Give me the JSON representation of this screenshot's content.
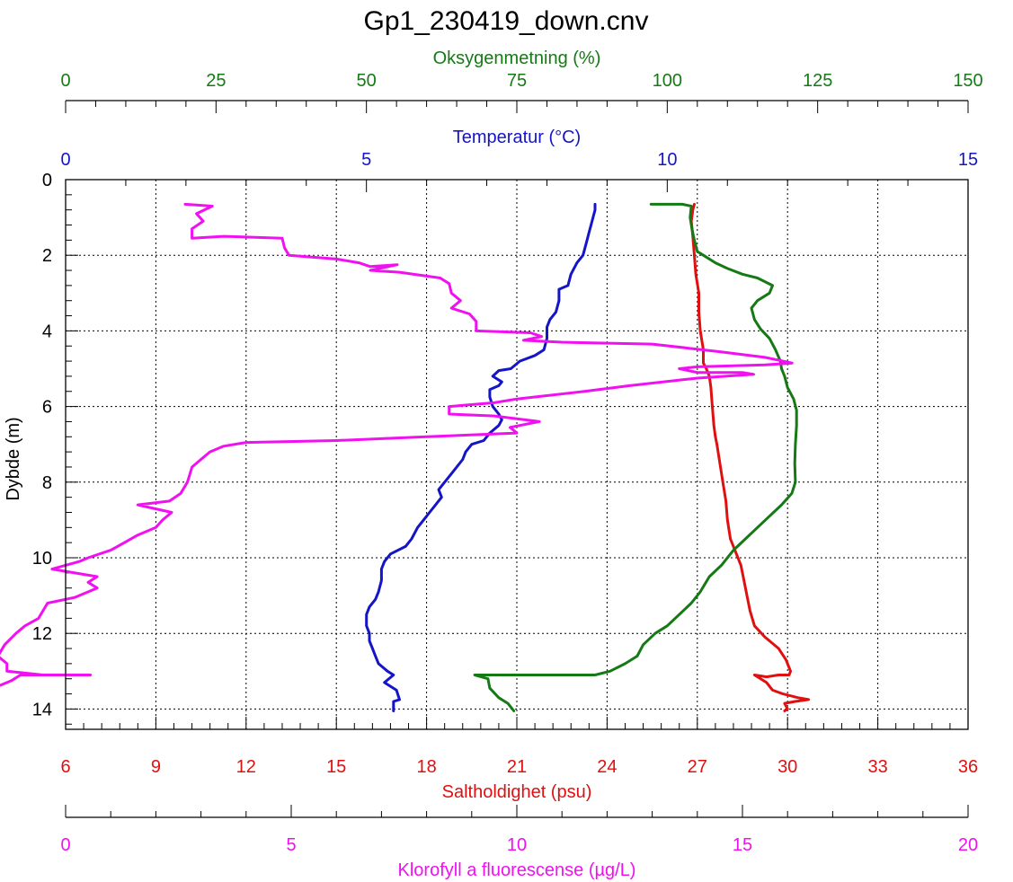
{
  "chart_data": {
    "type": "line",
    "title": "Gp1_230419_down.cnv",
    "y_axis": {
      "label": "Dybde (m)",
      "range": [
        0,
        14.8
      ],
      "ticks": [
        0,
        2,
        4,
        6,
        8,
        10,
        12,
        14
      ],
      "inverted": true,
      "grid": true
    },
    "axes": {
      "oxygen": {
        "label": "Oksygenmetning (%)",
        "range": [
          0,
          150
        ],
        "ticks": [
          0,
          25,
          50,
          75,
          100,
          125,
          150
        ],
        "position": "top",
        "color": "#157a15"
      },
      "temp": {
        "label": "Temperatur (°C)",
        "range": [
          0,
          15
        ],
        "ticks": [
          0,
          5,
          10,
          15
        ],
        "position": "top",
        "color": "#1515c8"
      },
      "salinity": {
        "label": "Saltholdighet (psu)",
        "range": [
          6,
          36
        ],
        "ticks": [
          6,
          9,
          12,
          15,
          18,
          21,
          24,
          27,
          30,
          33,
          36
        ],
        "position": "bottom",
        "color": "#e01010"
      },
      "chl": {
        "label": "Klorofyll a fluorescense (µg/L)",
        "range": [
          0,
          20
        ],
        "ticks": [
          0,
          5,
          10,
          15,
          20
        ],
        "position": "bottom",
        "color": "#f010f0"
      }
    },
    "series": [
      {
        "axis": "temp",
        "color": "#1515c8",
        "points": [
          [
            8.8,
            0.65
          ],
          [
            8.8,
            0.8
          ],
          [
            8.75,
            1.1
          ],
          [
            8.7,
            1.4
          ],
          [
            8.65,
            1.7
          ],
          [
            8.6,
            2.0
          ],
          [
            8.5,
            2.2
          ],
          [
            8.4,
            2.5
          ],
          [
            8.35,
            2.8
          ],
          [
            8.2,
            2.9
          ],
          [
            8.2,
            3.2
          ],
          [
            8.15,
            3.5
          ],
          [
            8.05,
            3.7
          ],
          [
            8.0,
            3.9
          ],
          [
            8.0,
            4.2
          ],
          [
            7.95,
            4.5
          ],
          [
            7.8,
            4.65
          ],
          [
            7.55,
            4.8
          ],
          [
            7.4,
            5.0
          ],
          [
            7.2,
            5.05
          ],
          [
            7.1,
            5.2
          ],
          [
            7.25,
            5.35
          ],
          [
            7.2,
            5.45
          ],
          [
            7.05,
            5.55
          ],
          [
            7.05,
            5.75
          ],
          [
            7.1,
            6.0
          ],
          [
            7.2,
            6.2
          ],
          [
            7.25,
            6.35
          ],
          [
            7.2,
            6.5
          ],
          [
            7.05,
            6.7
          ],
          [
            6.95,
            6.9
          ],
          [
            6.75,
            7.0
          ],
          [
            6.65,
            7.2
          ],
          [
            6.6,
            7.4
          ],
          [
            6.5,
            7.6
          ],
          [
            6.4,
            7.8
          ],
          [
            6.3,
            8.0
          ],
          [
            6.2,
            8.2
          ],
          [
            6.25,
            8.4
          ],
          [
            6.15,
            8.6
          ],
          [
            6.05,
            8.8
          ],
          [
            5.95,
            9.0
          ],
          [
            5.85,
            9.2
          ],
          [
            5.75,
            9.5
          ],
          [
            5.65,
            9.7
          ],
          [
            5.4,
            9.9
          ],
          [
            5.3,
            10.1
          ],
          [
            5.25,
            10.3
          ],
          [
            5.25,
            10.6
          ],
          [
            5.2,
            10.9
          ],
          [
            5.15,
            11.1
          ],
          [
            5.05,
            11.3
          ],
          [
            5.0,
            11.5
          ],
          [
            5.0,
            11.8
          ],
          [
            5.05,
            12.0
          ],
          [
            5.05,
            12.2
          ],
          [
            5.1,
            12.4
          ],
          [
            5.15,
            12.6
          ],
          [
            5.2,
            12.8
          ],
          [
            5.35,
            13.0
          ],
          [
            5.45,
            13.1
          ],
          [
            5.3,
            13.3
          ],
          [
            5.5,
            13.5
          ],
          [
            5.55,
            13.75
          ],
          [
            5.45,
            13.8
          ],
          [
            5.45,
            14.05
          ]
        ]
      },
      {
        "axis": "salinity",
        "color": "#e01010",
        "points": [
          [
            26.9,
            0.65
          ],
          [
            26.85,
            0.8
          ],
          [
            26.8,
            1.1
          ],
          [
            26.85,
            1.5
          ],
          [
            26.9,
            2.0
          ],
          [
            26.95,
            2.5
          ],
          [
            27.05,
            3.0
          ],
          [
            27.05,
            3.5
          ],
          [
            27.1,
            4.0
          ],
          [
            27.2,
            4.5
          ],
          [
            27.2,
            4.85
          ],
          [
            27.3,
            5.0
          ],
          [
            27.4,
            5.2
          ],
          [
            27.45,
            5.5
          ],
          [
            27.5,
            6.0
          ],
          [
            27.55,
            6.5
          ],
          [
            27.6,
            6.8
          ],
          [
            27.65,
            7.0
          ],
          [
            27.75,
            7.5
          ],
          [
            27.85,
            8.0
          ],
          [
            27.95,
            8.5
          ],
          [
            28.0,
            9.0
          ],
          [
            28.1,
            9.5
          ],
          [
            28.3,
            9.9
          ],
          [
            28.45,
            10.2
          ],
          [
            28.55,
            10.6
          ],
          [
            28.65,
            11.0
          ],
          [
            28.75,
            11.4
          ],
          [
            28.9,
            11.8
          ],
          [
            29.25,
            12.1
          ],
          [
            29.7,
            12.4
          ],
          [
            29.95,
            12.7
          ],
          [
            30.1,
            13.0
          ],
          [
            30.05,
            13.1
          ],
          [
            29.7,
            13.1
          ],
          [
            29.3,
            13.15
          ],
          [
            28.9,
            13.1
          ],
          [
            29.3,
            13.3
          ],
          [
            29.5,
            13.5
          ],
          [
            29.85,
            13.6
          ],
          [
            30.35,
            13.7
          ],
          [
            30.7,
            13.75
          ],
          [
            30.25,
            13.8
          ],
          [
            29.9,
            13.85
          ],
          [
            30.0,
            14.0
          ],
          [
            29.9,
            14.05
          ]
        ]
      },
      {
        "axis": "oxygen",
        "color": "#157a15",
        "points": [
          [
            97.3,
            0.65
          ],
          [
            102.5,
            0.65
          ],
          [
            104.0,
            0.7
          ],
          [
            103.8,
            1.0
          ],
          [
            104.1,
            1.3
          ],
          [
            104.5,
            1.6
          ],
          [
            105.0,
            1.9
          ],
          [
            106.0,
            2.0
          ],
          [
            108.0,
            2.2
          ],
          [
            110.0,
            2.35
          ],
          [
            112.5,
            2.5
          ],
          [
            115.0,
            2.6
          ],
          [
            117.5,
            2.8
          ],
          [
            117.0,
            3.0
          ],
          [
            115.0,
            3.2
          ],
          [
            114.0,
            3.4
          ],
          [
            114.5,
            3.7
          ],
          [
            115.5,
            3.95
          ],
          [
            117.0,
            4.2
          ],
          [
            118.0,
            4.5
          ],
          [
            118.8,
            4.8
          ],
          [
            119.0,
            5.0
          ],
          [
            119.5,
            5.2
          ],
          [
            120.0,
            5.5
          ],
          [
            121.0,
            5.8
          ],
          [
            121.5,
            6.1
          ],
          [
            121.5,
            6.5
          ],
          [
            121.3,
            7.0
          ],
          [
            121.2,
            7.5
          ],
          [
            121.3,
            8.0
          ],
          [
            120.7,
            8.3
          ],
          [
            119.0,
            8.6
          ],
          [
            117.0,
            8.9
          ],
          [
            115.0,
            9.2
          ],
          [
            113.0,
            9.5
          ],
          [
            111.0,
            9.8
          ],
          [
            109.0,
            10.2
          ],
          [
            107.0,
            10.5
          ],
          [
            105.5,
            10.9
          ],
          [
            104.0,
            11.2
          ],
          [
            102.0,
            11.5
          ],
          [
            100.0,
            11.8
          ],
          [
            98.0,
            12.0
          ],
          [
            96.0,
            12.3
          ],
          [
            95.0,
            12.6
          ],
          [
            93.0,
            12.8
          ],
          [
            90.5,
            13.0
          ],
          [
            88.0,
            13.1
          ],
          [
            70.0,
            13.1
          ],
          [
            68.0,
            13.1
          ],
          [
            70.2,
            13.2
          ],
          [
            70.5,
            13.45
          ],
          [
            72.0,
            13.7
          ],
          [
            73.5,
            13.85
          ],
          [
            74.5,
            14.05
          ]
        ]
      },
      {
        "axis": "chl",
        "color": "#f010f0",
        "points": [
          [
            2.65,
            0.65
          ],
          [
            3.25,
            0.7
          ],
          [
            2.9,
            0.9
          ],
          [
            3.05,
            1.1
          ],
          [
            2.8,
            1.3
          ],
          [
            2.8,
            1.55
          ],
          [
            3.5,
            1.5
          ],
          [
            4.8,
            1.55
          ],
          [
            4.85,
            1.8
          ],
          [
            4.95,
            2.0
          ],
          [
            6.0,
            2.1
          ],
          [
            6.5,
            2.2
          ],
          [
            6.75,
            2.3
          ],
          [
            7.35,
            2.25
          ],
          [
            6.75,
            2.4
          ],
          [
            7.4,
            2.45
          ],
          [
            8.3,
            2.6
          ],
          [
            8.5,
            2.75
          ],
          [
            8.55,
            3.0
          ],
          [
            8.75,
            3.2
          ],
          [
            8.55,
            3.4
          ],
          [
            8.95,
            3.55
          ],
          [
            9.1,
            3.75
          ],
          [
            9.1,
            4.0
          ],
          [
            10.3,
            4.05
          ],
          [
            10.55,
            4.15
          ],
          [
            10.15,
            4.25
          ],
          [
            11.0,
            4.3
          ],
          [
            13.0,
            4.35
          ],
          [
            14.5,
            4.55
          ],
          [
            15.5,
            4.7
          ],
          [
            16.1,
            4.85
          ],
          [
            15.5,
            4.9
          ],
          [
            14.0,
            4.95
          ],
          [
            13.6,
            5.0
          ],
          [
            14.0,
            5.1
          ],
          [
            15.0,
            5.1
          ],
          [
            15.25,
            5.15
          ],
          [
            14.0,
            5.25
          ],
          [
            12.5,
            5.45
          ],
          [
            11.5,
            5.6
          ],
          [
            10.0,
            5.8
          ],
          [
            9.5,
            5.9
          ],
          [
            8.5,
            6.0
          ],
          [
            8.5,
            6.2
          ],
          [
            9.5,
            6.25
          ],
          [
            10.5,
            6.4
          ],
          [
            9.85,
            6.55
          ],
          [
            10.0,
            6.7
          ],
          [
            8.0,
            6.8
          ],
          [
            7.0,
            6.85
          ],
          [
            6.0,
            6.9
          ],
          [
            4.0,
            6.95
          ],
          [
            3.5,
            7.05
          ],
          [
            3.2,
            7.2
          ],
          [
            3.0,
            7.4
          ],
          [
            2.8,
            7.6
          ],
          [
            2.75,
            7.8
          ],
          [
            2.7,
            8.0
          ],
          [
            2.55,
            8.3
          ],
          [
            2.3,
            8.5
          ],
          [
            1.6,
            8.6
          ],
          [
            2.35,
            8.8
          ],
          [
            2.15,
            9.0
          ],
          [
            2.0,
            9.2
          ],
          [
            1.6,
            9.4
          ],
          [
            1.3,
            9.6
          ],
          [
            1.0,
            9.8
          ],
          [
            0.5,
            10.0
          ],
          [
            0.3,
            10.1
          ],
          [
            -0.3,
            10.3
          ],
          [
            0.7,
            10.5
          ],
          [
            0.5,
            10.65
          ],
          [
            0.7,
            10.8
          ],
          [
            0.2,
            11.05
          ],
          [
            -0.4,
            11.2
          ],
          [
            -0.5,
            11.4
          ],
          [
            -0.6,
            11.6
          ],
          [
            -0.9,
            11.8
          ],
          [
            -1.1,
            12.0
          ],
          [
            -1.35,
            12.3
          ],
          [
            -1.5,
            12.6
          ],
          [
            -1.3,
            12.8
          ],
          [
            -1.3,
            13.0
          ],
          [
            -0.5,
            13.1
          ],
          [
            0.55,
            13.1
          ],
          [
            -1.0,
            13.1
          ],
          [
            -1.2,
            13.25
          ],
          [
            -1.5,
            13.4
          ],
          [
            -1.8,
            13.5
          ],
          [
            -2.0,
            13.6
          ],
          [
            -2.3,
            13.8
          ],
          [
            -2.5,
            14.0
          ],
          [
            -2.35,
            14.05
          ]
        ]
      }
    ]
  }
}
